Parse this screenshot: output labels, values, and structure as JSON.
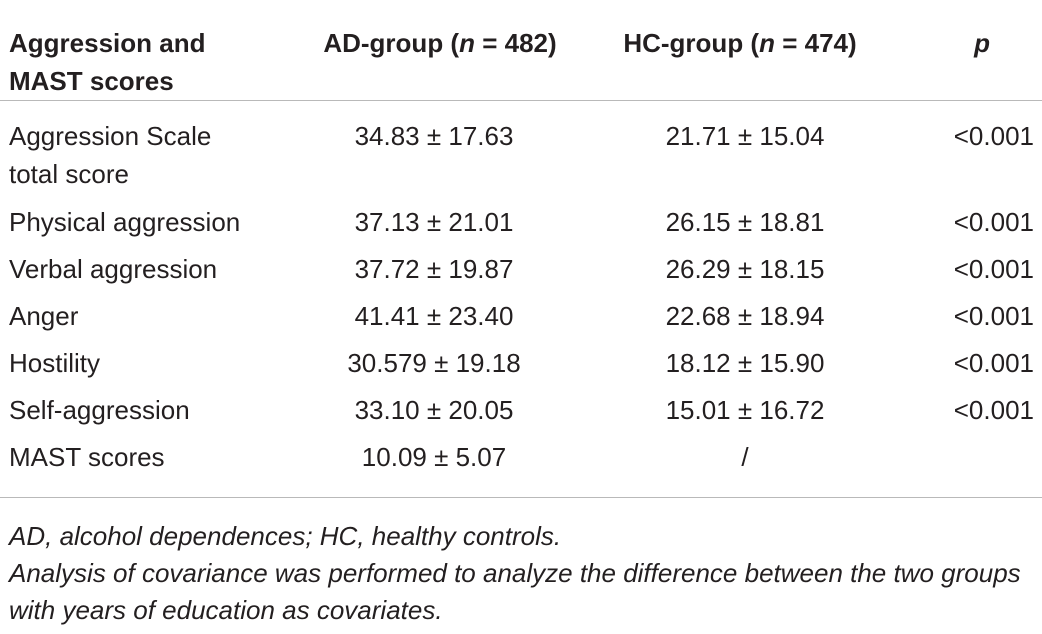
{
  "table": {
    "headers": {
      "label": "Aggression and MAST scores",
      "ad_prefix": "AD-group (",
      "ad_n": "n",
      "ad_suffix": " = 482)",
      "hc_prefix": "HC-group (",
      "hc_n": "n",
      "hc_suffix": " = 474)",
      "p": "p"
    },
    "rows": [
      {
        "label": "Aggression Scale total score",
        "ad": "34.83 ± 17.63",
        "hc": "21.71 ± 15.04",
        "p": "<0.001"
      },
      {
        "label": "Physical aggression",
        "ad": "37.13 ± 21.01",
        "hc": "26.15 ± 18.81",
        "p": "<0.001"
      },
      {
        "label": "Verbal aggression",
        "ad": "37.72 ± 19.87",
        "hc": "26.29 ± 18.15",
        "p": "<0.001"
      },
      {
        "label": "Anger",
        "ad": "41.41 ± 23.40",
        "hc": "22.68 ± 18.94",
        "p": "<0.001"
      },
      {
        "label": "Hostility",
        "ad": "30.579 ± 19.18",
        "hc": "18.12 ± 15.90",
        "p": "<0.001"
      },
      {
        "label": "Self-aggression",
        "ad": "33.10 ± 20.05",
        "hc": "15.01 ± 16.72",
        "p": "<0.001"
      },
      {
        "label": "MAST scores",
        "ad": "10.09 ± 5.07",
        "hc": "/",
        "p": ""
      }
    ]
  },
  "notes": {
    "abbreviations": "AD, alcohol dependences; HC, healthy controls.",
    "method": "Analysis of covariance was performed to analyze the difference between the two groups with years of education as covariates."
  }
}
